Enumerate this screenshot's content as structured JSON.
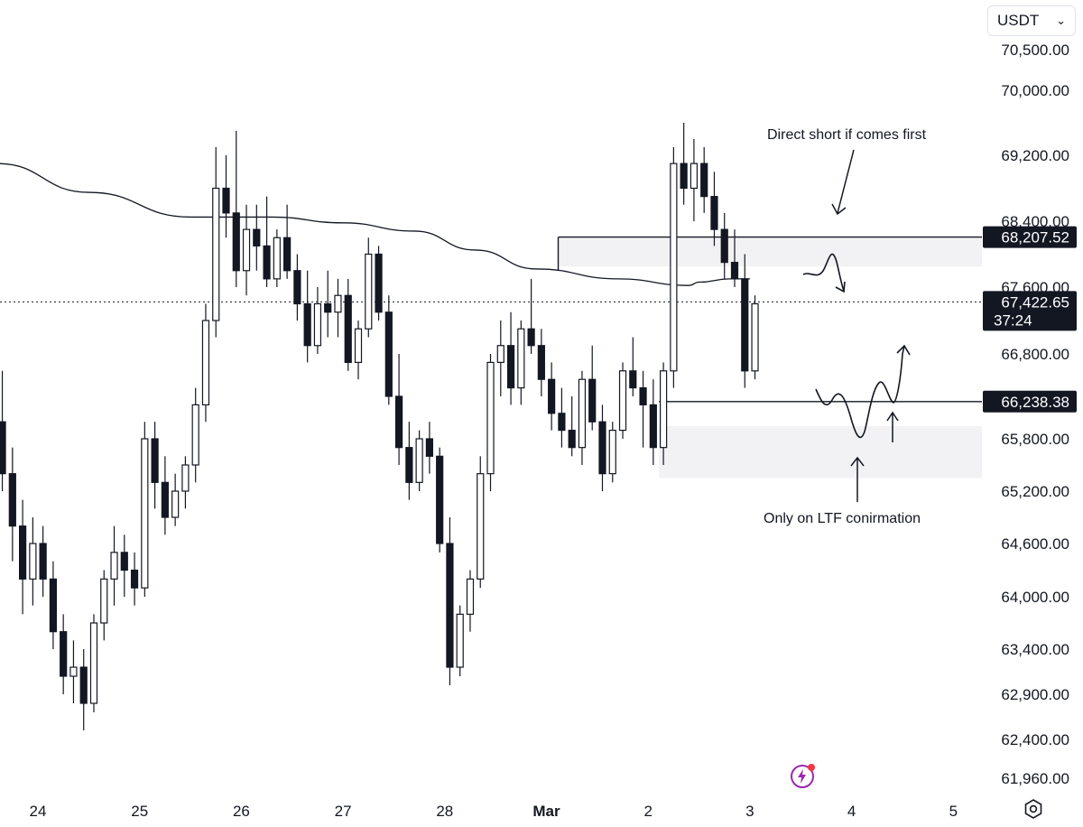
{
  "toolbar": {
    "currency": "USDT"
  },
  "chart_data": {
    "type": "candlestick",
    "title": "",
    "y_axis": {
      "ticks": [
        "70,500.00",
        "70,000.00",
        "69,200.00",
        "68,400.00",
        "67,600.00",
        "66,800.00",
        "65,800.00",
        "65,200.00",
        "64,600.00",
        "64,000.00",
        "63,400.00",
        "62,900.00",
        "62,400.00",
        "61,960.00"
      ],
      "tick_values": [
        70500,
        70000,
        69200,
        68400,
        67600,
        66800,
        65800,
        65200,
        64600,
        64000,
        63400,
        62900,
        62400,
        61960
      ]
    },
    "x_axis": {
      "labels": [
        "24",
        "25",
        "26",
        "27",
        "28",
        "Mar",
        "2",
        "3",
        "4",
        "5"
      ],
      "bold_label": "Mar"
    },
    "price_tags": [
      {
        "label": "68,207.52",
        "value": 68207.52,
        "style": "dark"
      },
      {
        "label": "67,422.65",
        "value": 67422.65,
        "sublabel": "37:24",
        "style": "current"
      },
      {
        "label": "66,238.38",
        "value": 66238.38,
        "style": "dark"
      }
    ],
    "annotations": [
      {
        "text": "Direct short if comes first"
      },
      {
        "text": "Only on LTF conirmation"
      }
    ],
    "zones": [
      {
        "name": "supply-zone",
        "from_date": "Mar 1",
        "top": 68207.52,
        "bottom": 67850
      },
      {
        "name": "demand-zone",
        "from_date": "Mar 2",
        "top": 65950,
        "bottom": 65350
      }
    ],
    "horizontal_lines": [
      {
        "name": "supply-level",
        "value": 68207.52
      },
      {
        "name": "demand-level",
        "value": 66238.38
      }
    ],
    "current_price_line": 67422.65,
    "moving_average": {
      "points": [
        [
          23.6,
          69100
        ],
        [
          24.5,
          68750
        ],
        [
          25.5,
          68450
        ],
        [
          26.3,
          68450
        ],
        [
          27.0,
          68380
        ],
        [
          27.7,
          68280
        ],
        [
          28.3,
          68050
        ],
        [
          28.9,
          67820
        ],
        [
          29.7,
          67700
        ],
        [
          30.4,
          67620
        ],
        [
          30.5,
          67660
        ],
        [
          30.8,
          67700
        ],
        [
          31.0,
          67700
        ]
      ]
    },
    "candles": [
      [
        23.65,
        66000,
        66600,
        65200,
        65400
      ],
      [
        23.75,
        65400,
        65700,
        64400,
        64800
      ],
      [
        23.85,
        64800,
        65100,
        63800,
        64200
      ],
      [
        23.95,
        64200,
        64900,
        63900,
        64600
      ],
      [
        24.05,
        64600,
        64800,
        64000,
        64200
      ],
      [
        24.15,
        64200,
        64400,
        63400,
        63600
      ],
      [
        24.25,
        63600,
        63800,
        62900,
        63100
      ],
      [
        24.35,
        63100,
        63500,
        62800,
        63200
      ],
      [
        24.45,
        63200,
        63400,
        62500,
        62800
      ],
      [
        24.55,
        62800,
        63800,
        62700,
        63700
      ],
      [
        24.65,
        63700,
        64300,
        63500,
        64200
      ],
      [
        24.75,
        64200,
        64800,
        63900,
        64500
      ],
      [
        24.85,
        64500,
        64700,
        64000,
        64300
      ],
      [
        24.95,
        64300,
        64500,
        63900,
        64100
      ],
      [
        25.05,
        64100,
        66000,
        64000,
        65800
      ],
      [
        25.15,
        65800,
        66000,
        65000,
        65300
      ],
      [
        25.25,
        65300,
        65600,
        64700,
        64900
      ],
      [
        25.35,
        64900,
        65400,
        64800,
        65200
      ],
      [
        25.45,
        65200,
        65600,
        65000,
        65500
      ],
      [
        25.55,
        65500,
        66400,
        65300,
        66200
      ],
      [
        25.65,
        66200,
        67400,
        66000,
        67200
      ],
      [
        25.75,
        67200,
        69300,
        67000,
        68800
      ],
      [
        25.85,
        68800,
        69200,
        68200,
        68500
      ],
      [
        25.95,
        68500,
        69500,
        67600,
        67800
      ],
      [
        26.05,
        67800,
        68600,
        67500,
        68300
      ],
      [
        26.15,
        68300,
        68600,
        67800,
        68100
      ],
      [
        26.25,
        68100,
        68700,
        67600,
        67700
      ],
      [
        26.35,
        67700,
        68300,
        67600,
        68200
      ],
      [
        26.45,
        68200,
        68600,
        67700,
        67800
      ],
      [
        26.55,
        67800,
        68000,
        67200,
        67400
      ],
      [
        26.65,
        67400,
        67800,
        66700,
        66900
      ],
      [
        26.75,
        66900,
        67600,
        66800,
        67400
      ],
      [
        26.85,
        67400,
        67800,
        67000,
        67300
      ],
      [
        26.95,
        67300,
        67700,
        67000,
        67500
      ],
      [
        27.05,
        67500,
        67700,
        66600,
        66700
      ],
      [
        27.15,
        66700,
        67200,
        66500,
        67100
      ],
      [
        27.25,
        67100,
        68200,
        67000,
        68000
      ],
      [
        27.35,
        68000,
        68100,
        67200,
        67300
      ],
      [
        27.45,
        67300,
        67500,
        66200,
        66300
      ],
      [
        27.55,
        66300,
        66800,
        65500,
        65700
      ],
      [
        27.65,
        65700,
        66000,
        65100,
        65300
      ],
      [
        27.75,
        65300,
        65900,
        65200,
        65800
      ],
      [
        27.85,
        65800,
        66000,
        65400,
        65600
      ],
      [
        27.95,
        65600,
        65700,
        64500,
        64600
      ],
      [
        28.05,
        64600,
        64900,
        63000,
        63200
      ],
      [
        28.15,
        63200,
        63900,
        63100,
        63800
      ],
      [
        28.25,
        63800,
        64300,
        63600,
        64200
      ],
      [
        28.35,
        64200,
        65600,
        64100,
        65400
      ],
      [
        28.45,
        65400,
        66800,
        65200,
        66700
      ],
      [
        28.55,
        66700,
        67200,
        66300,
        66900
      ],
      [
        28.65,
        66900,
        67300,
        66200,
        66400
      ],
      [
        28.75,
        66400,
        67200,
        66200,
        67100
      ],
      [
        28.85,
        67100,
        67700,
        66800,
        66900
      ],
      [
        28.95,
        66900,
        67100,
        66300,
        66500
      ],
      [
        29.05,
        66500,
        66700,
        65900,
        66100
      ],
      [
        29.15,
        66100,
        66400,
        65700,
        65900
      ],
      [
        29.25,
        65900,
        66300,
        65600,
        65700
      ],
      [
        29.35,
        65700,
        66600,
        65500,
        66500
      ],
      [
        29.45,
        66500,
        66900,
        65900,
        66000
      ],
      [
        29.55,
        66000,
        66200,
        65200,
        65400
      ],
      [
        29.65,
        65400,
        66000,
        65300,
        65900
      ],
      [
        29.75,
        65900,
        66700,
        65800,
        66600
      ],
      [
        29.85,
        66600,
        67000,
        66300,
        66400
      ],
      [
        29.95,
        66400,
        66600,
        65700,
        66200
      ],
      [
        30.05,
        66200,
        66500,
        65500,
        65700
      ],
      [
        30.15,
        65700,
        66700,
        65500,
        66600
      ],
      [
        30.25,
        66600,
        69300,
        66400,
        69100
      ],
      [
        30.35,
        69100,
        69600,
        68600,
        68800
      ],
      [
        30.45,
        68800,
        69400,
        68400,
        69100
      ],
      [
        30.55,
        69100,
        69300,
        68500,
        68700
      ],
      [
        30.65,
        68700,
        69000,
        68100,
        68300
      ],
      [
        30.75,
        68300,
        68500,
        67700,
        67900
      ],
      [
        30.85,
        67900,
        68300,
        67600,
        67700
      ],
      [
        30.95,
        67700,
        68000,
        66400,
        66600
      ],
      [
        31.05,
        66600,
        67500,
        66500,
        67400
      ]
    ]
  }
}
